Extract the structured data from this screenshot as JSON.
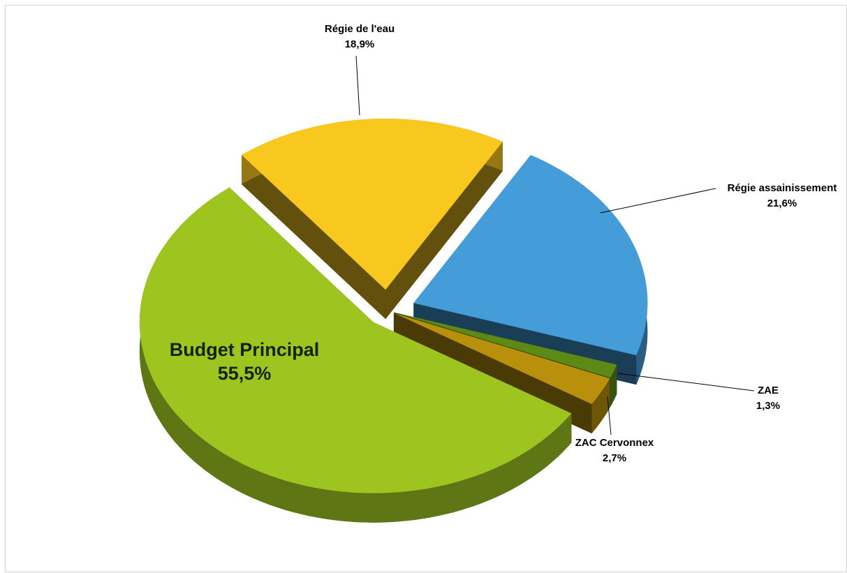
{
  "chart_data": {
    "type": "pie",
    "categories": [
      "Régie de l'eau",
      "Régie assainissement",
      "ZAE",
      "ZAC Cervonnex",
      "Budget Principal"
    ],
    "values": [
      18.9,
      21.6,
      1.3,
      2.7,
      55.5
    ],
    "value_labels": [
      "18,9%",
      "21,6%",
      "1,3%",
      "2,7%",
      "55,5%"
    ],
    "colors": [
      "#f8c81f",
      "#449cd9",
      "#5d8a15",
      "#b8900c",
      "#9dc41f"
    ]
  }
}
